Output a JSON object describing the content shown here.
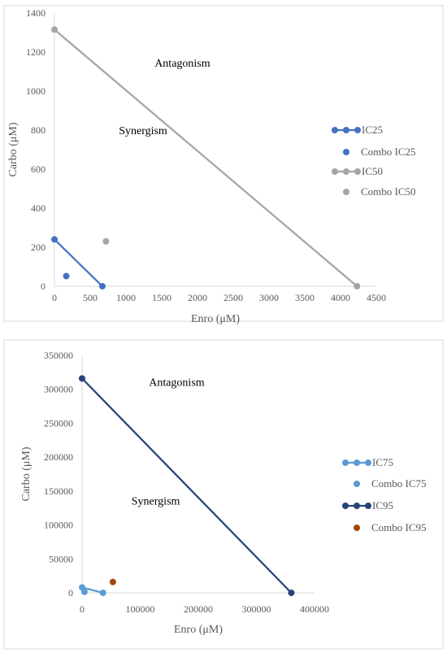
{
  "chart_data": [
    {
      "type": "scatter",
      "xlabel": "Enro (μM)",
      "ylabel": "Carbo (μM)",
      "xlim": [
        0,
        4500
      ],
      "ylim": [
        0,
        1400
      ],
      "x_ticks": [
        0,
        500,
        1000,
        1500,
        2000,
        2500,
        3000,
        3500,
        4000,
        4500
      ],
      "x_tick_labels": [
        "0",
        "500",
        "1000",
        "1500",
        "2000",
        "2500",
        "3000",
        "3500",
        "4000",
        "4500"
      ],
      "y_ticks": [
        0,
        200,
        400,
        600,
        800,
        1000,
        1200,
        1400
      ],
      "y_tick_labels": [
        "0",
        "200",
        "400",
        "600",
        "800",
        "1000",
        "1200",
        "1400"
      ],
      "grid": false,
      "legend_position": "right",
      "annotations": [
        {
          "text": "Antagonism",
          "x": 1400,
          "y": 1125
        },
        {
          "text": "Synergism",
          "x": 900,
          "y": 780
        }
      ],
      "series": [
        {
          "name": "IC25",
          "kind": "line-markers",
          "color": "#4472C4",
          "points": [
            [
              0,
              240
            ],
            [
              670,
              0
            ]
          ]
        },
        {
          "name": "Combo IC25",
          "kind": "markers",
          "color": "#4472C4",
          "points": [
            [
              165,
              52
            ]
          ]
        },
        {
          "name": "IC50",
          "kind": "line-markers",
          "color": "#A5A5A5",
          "points": [
            [
              0,
              1315
            ],
            [
              4230,
              0
            ]
          ]
        },
        {
          "name": "Combo IC50",
          "kind": "markers",
          "color": "#A5A5A5",
          "points": [
            [
              720,
              230
            ]
          ]
        }
      ]
    },
    {
      "type": "scatter",
      "xlabel": "Enro (μM)",
      "ylabel": "Carbo (μM)",
      "xlim": [
        0,
        400000
      ],
      "ylim": [
        0,
        350000
      ],
      "x_ticks": [
        0,
        100000,
        200000,
        300000,
        400000
      ],
      "x_tick_labels": [
        "0",
        "100000",
        "200000",
        "300000",
        "400000"
      ],
      "y_ticks": [
        0,
        50000,
        100000,
        150000,
        200000,
        250000,
        300000,
        350000
      ],
      "y_tick_labels": [
        "0",
        "50000",
        "100000",
        "150000",
        "200000",
        "250000",
        "300000",
        "350000"
      ],
      "grid": false,
      "legend_position": "right",
      "annotations": [
        {
          "text": "Antagonism",
          "x": 115000,
          "y": 305000
        },
        {
          "text": "Synergism",
          "x": 85000,
          "y": 130000
        }
      ],
      "series": [
        {
          "name": "IC75",
          "kind": "line-markers",
          "color": "#5B9BD5",
          "points": [
            [
              0,
              8000
            ],
            [
              36000,
              0
            ]
          ]
        },
        {
          "name": "Combo IC75",
          "kind": "markers",
          "color": "#5B9BD5",
          "points": [
            [
              4000,
              1500
            ]
          ]
        },
        {
          "name": "IC95",
          "kind": "line-markers",
          "color": "#264478",
          "points": [
            [
              0,
              316000
            ],
            [
              360000,
              0
            ]
          ]
        },
        {
          "name": "Combo IC95",
          "kind": "markers",
          "color": "#9E480E",
          "points": [
            [
              53000,
              16000
            ]
          ]
        }
      ]
    }
  ]
}
